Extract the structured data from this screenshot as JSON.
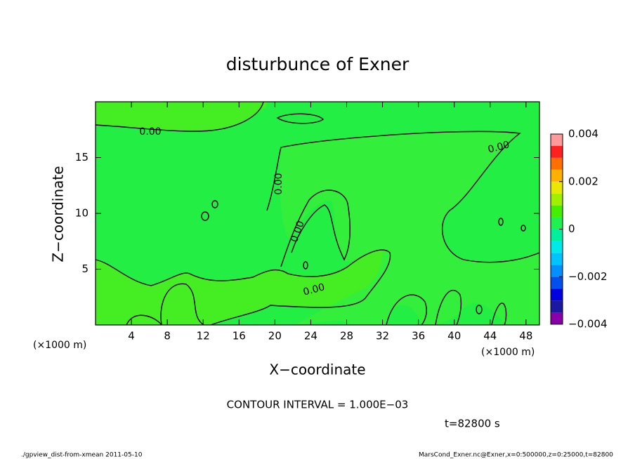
{
  "chart_data": {
    "type": "contour",
    "title": "disturbunce of Exner",
    "x_label": "X−coordinate",
    "y_label": "Z−coordinate",
    "x_unit_left": "(×1000 m)",
    "x_unit_right": "(×1000 m)",
    "xlim": [
      0,
      49.5
    ],
    "xticks": [
      4,
      8,
      12,
      16,
      20,
      24,
      28,
      32,
      36,
      40,
      44,
      48
    ],
    "ylim": [
      0,
      20
    ],
    "yticks": [
      5,
      10,
      15
    ],
    "contour_labels": [
      "0.00",
      "0.00",
      "0.00",
      "0.00",
      "0.00"
    ],
    "colorbar": {
      "levels": [
        -0.004,
        -0.0035,
        -0.003,
        -0.0025,
        -0.002,
        -0.0015,
        -0.001,
        -0.0005,
        0,
        0.0005,
        0.001,
        0.0015,
        0.002,
        0.0025,
        0.003,
        0.0035,
        0.004
      ],
      "colors": [
        "#8a00a8",
        "#1a1aa0",
        "#0000e0",
        "#0050f0",
        "#0090ff",
        "#00c4ff",
        "#00eaea",
        "#00f0a0",
        "#20f050",
        "#44f000",
        "#a0f000",
        "#e8e800",
        "#ffb000",
        "#ff7000",
        "#ff2020",
        "#ff9a9a"
      ],
      "ticks": [
        -0.004,
        -0.002,
        0,
        0.002,
        0.004
      ],
      "tick_labels": [
        "−0.004",
        "−0.002",
        "0",
        "0.002",
        "0.004"
      ]
    },
    "contour_interval": "CONTOUR INTERVAL = 1.000E−03",
    "time": "t=82800 s",
    "footer_left": "./gpview_dist-from-xmean  2011-05-10",
    "footer_right": "MarsCond_Exner.nc@Exner,x=0:500000,z=0:25000,t=82800"
  }
}
